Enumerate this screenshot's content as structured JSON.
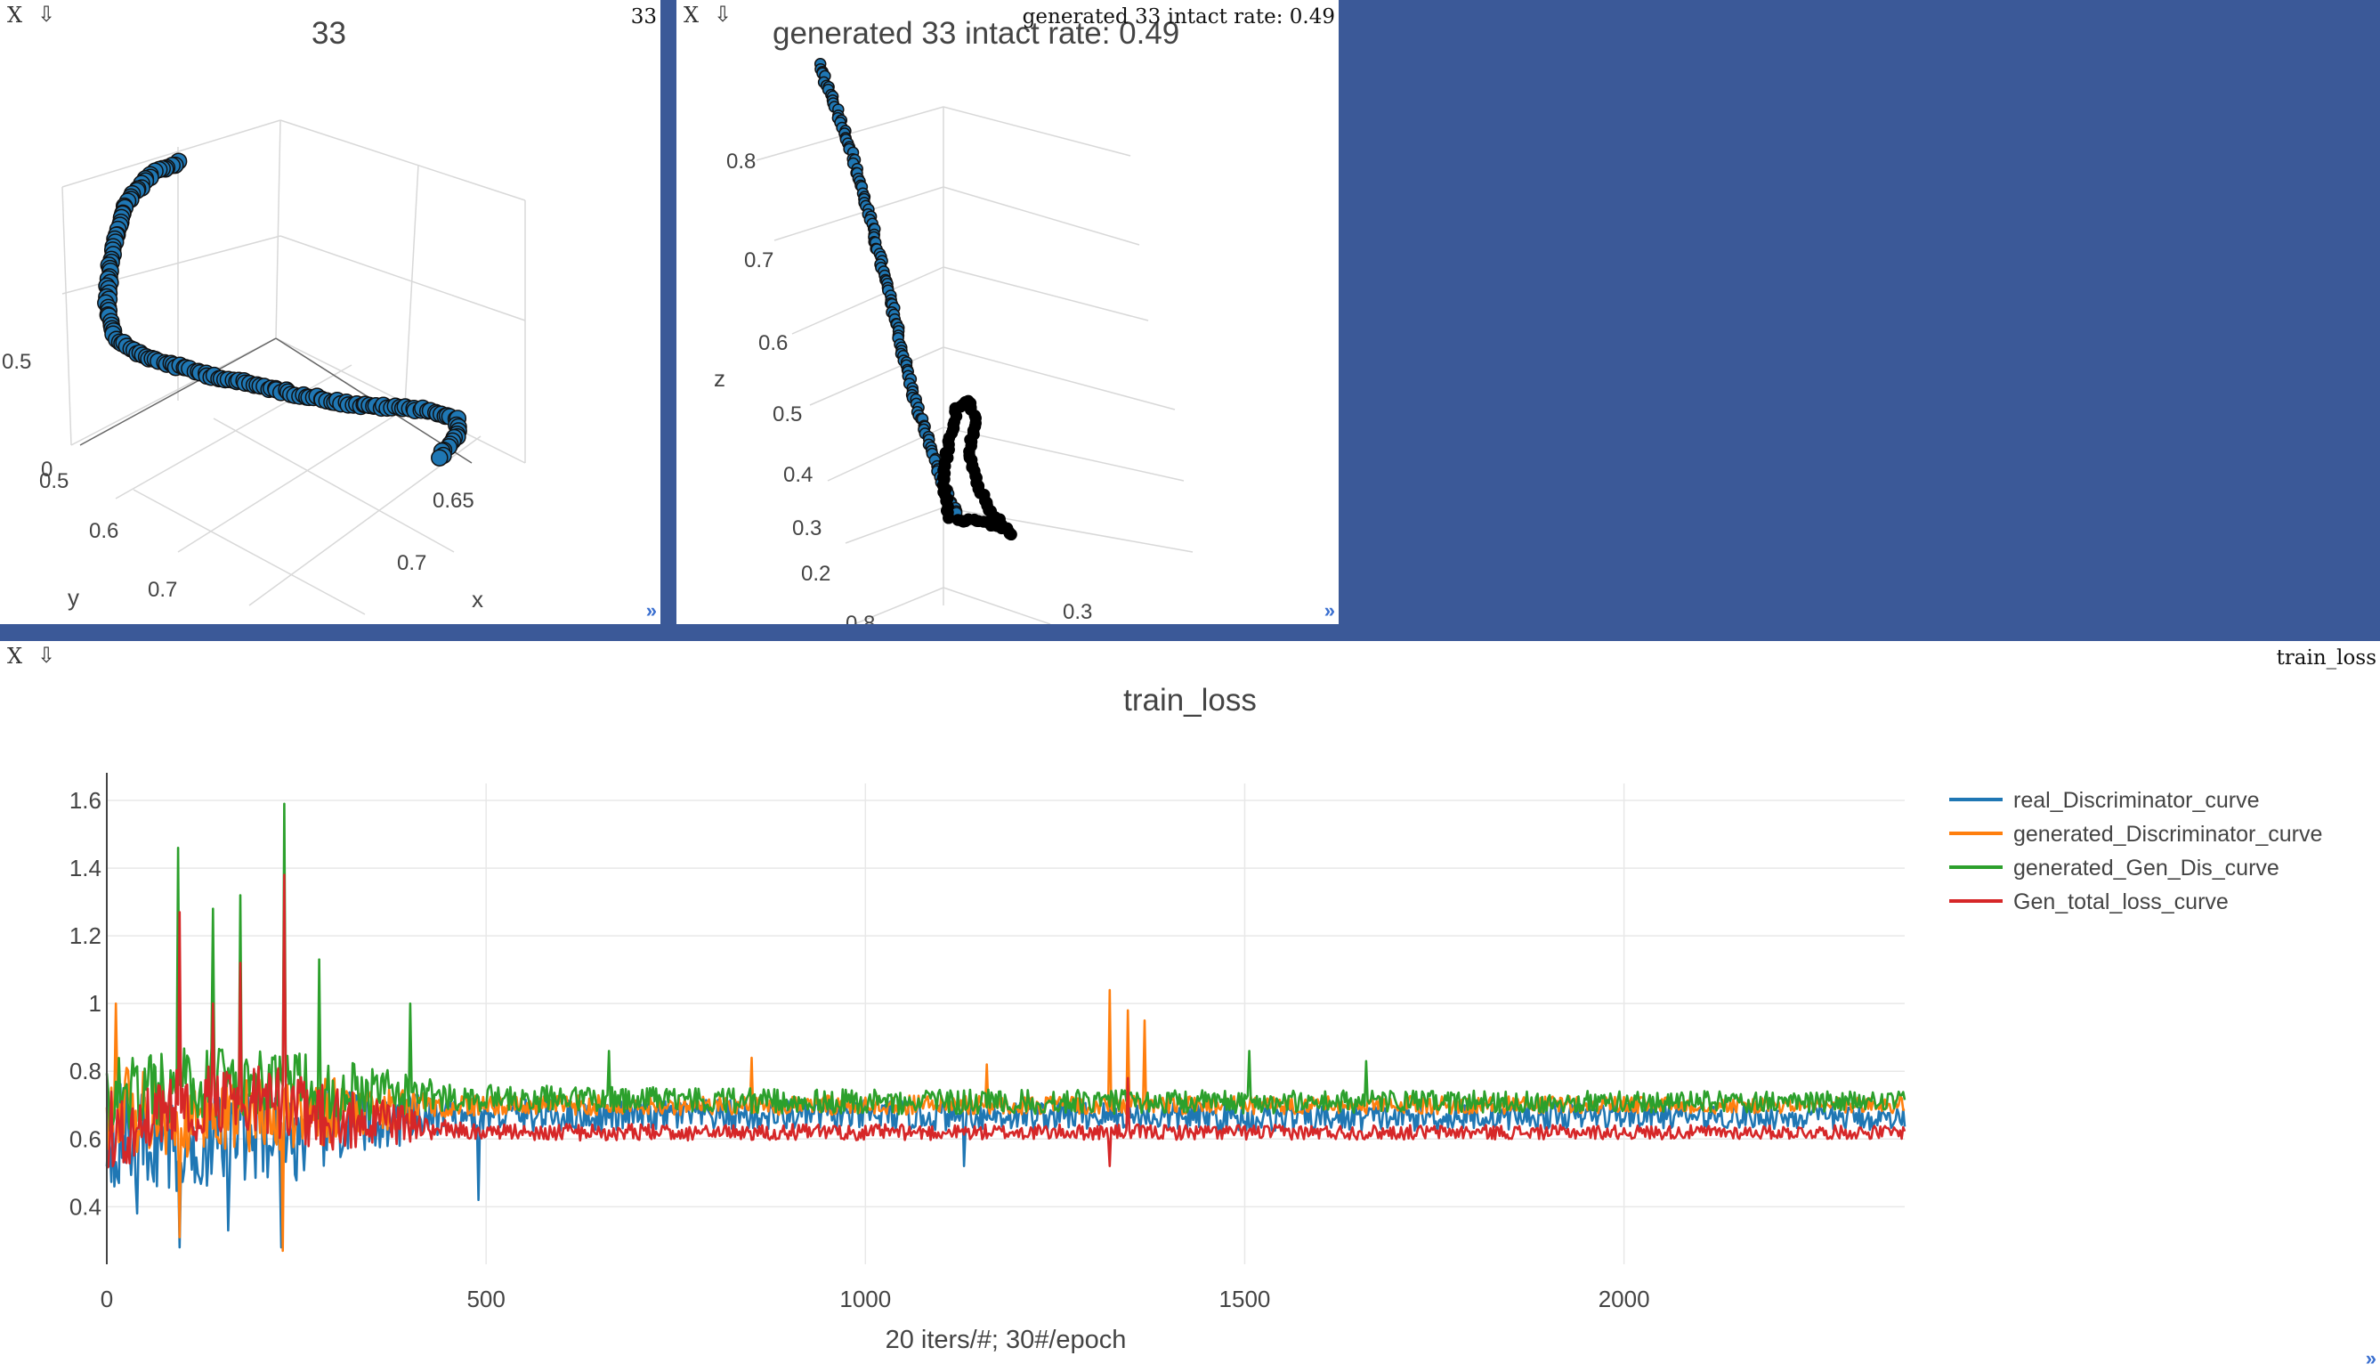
{
  "ui": {
    "close_label": "X",
    "save_label": "⇩",
    "resize_label": "»"
  },
  "panes": [
    {
      "id": "pane1",
      "window_title": "33",
      "plot_title": "33",
      "axis_labels": {
        "x": "x",
        "y": "y"
      },
      "x_ticks": [
        "0.65",
        "0.7"
      ],
      "y_ticks": [
        "0.5",
        "0.6",
        "0.7"
      ],
      "z_ticks": [
        "0.5",
        "0"
      ]
    },
    {
      "id": "pane2",
      "window_title": "generated 33 intact rate: 0.49",
      "plot_title": "generated 33  intact rate: 0.49",
      "axis_labels": {
        "z": "z"
      },
      "z_ticks": [
        "0.8",
        "0.7",
        "0.6",
        "0.5",
        "0.4",
        "0.3",
        "0.2"
      ],
      "x_ticks": [
        "0.3"
      ],
      "y_ticks": [
        "0.8"
      ]
    },
    {
      "id": "pane3",
      "window_title": "train_loss"
    }
  ],
  "chart_data": {
    "type": "line",
    "title": "train_loss",
    "xlabel": "20 iters/#; 30#/epoch",
    "ylabel": "",
    "xlim": [
      0,
      2370
    ],
    "ylim": [
      0.23,
      1.65
    ],
    "x_ticks": [
      0,
      500,
      1000,
      1500,
      2000
    ],
    "y_ticks": [
      0.4,
      0.6,
      0.8,
      1,
      1.2,
      1.4,
      1.6
    ],
    "y_tick_labels": [
      "0.4",
      "0.6",
      "0.8",
      "1",
      "1.2",
      "1.4",
      "1.6"
    ],
    "grid": true,
    "legend_position": "top-right",
    "series": [
      {
        "name": "real_Discriminator_curve",
        "color": "#1f77b4",
        "anchors": [
          [
            0,
            0.62
          ],
          [
            50,
            0.6
          ],
          [
            100,
            0.58
          ],
          [
            150,
            0.6
          ],
          [
            200,
            0.62
          ],
          [
            250,
            0.6
          ],
          [
            300,
            0.64
          ],
          [
            400,
            0.66
          ],
          [
            500,
            0.67
          ],
          [
            700,
            0.67
          ],
          [
            1000,
            0.67
          ],
          [
            1300,
            0.67
          ],
          [
            1500,
            0.66
          ],
          [
            2000,
            0.67
          ],
          [
            2370,
            0.66
          ]
        ],
        "noise": [
          [
            0,
            0.16
          ],
          [
            300,
            0.12
          ],
          [
            450,
            0.05
          ],
          [
            2370,
            0.035
          ]
        ],
        "peaks": [
          [
            95,
            0.28
          ],
          [
            230,
            0.28
          ],
          [
            40,
            0.38
          ],
          [
            160,
            0.33
          ],
          [
            490,
            0.42
          ],
          [
            1130,
            0.52
          ]
        ]
      },
      {
        "name": "generated_Discriminator_curve",
        "color": "#ff7f0e",
        "anchors": [
          [
            0,
            0.7
          ],
          [
            100,
            0.66
          ],
          [
            200,
            0.67
          ],
          [
            300,
            0.68
          ],
          [
            500,
            0.7
          ],
          [
            1000,
            0.7
          ],
          [
            1500,
            0.7
          ],
          [
            2000,
            0.7
          ],
          [
            2370,
            0.7
          ]
        ],
        "noise": [
          [
            0,
            0.13
          ],
          [
            300,
            0.1
          ],
          [
            450,
            0.03
          ],
          [
            2370,
            0.025
          ]
        ],
        "peaks": [
          [
            1322,
            1.04
          ],
          [
            1345,
            0.98
          ],
          [
            1368,
            0.95
          ],
          [
            12,
            1.0
          ],
          [
            95,
            0.31
          ],
          [
            232,
            0.27
          ],
          [
            850,
            0.84
          ],
          [
            1160,
            0.82
          ]
        ]
      },
      {
        "name": "generated_Gen_Dis_curve",
        "color": "#2ca02c",
        "anchors": [
          [
            0,
            0.73
          ],
          [
            100,
            0.76
          ],
          [
            200,
            0.76
          ],
          [
            300,
            0.74
          ],
          [
            500,
            0.72
          ],
          [
            1000,
            0.71
          ],
          [
            1500,
            0.71
          ],
          [
            2000,
            0.71
          ],
          [
            2370,
            0.71
          ]
        ],
        "noise": [
          [
            0,
            0.12
          ],
          [
            300,
            0.1
          ],
          [
            450,
            0.04
          ],
          [
            2370,
            0.03
          ]
        ],
        "peaks": [
          [
            94,
            1.46
          ],
          [
            233,
            1.59
          ],
          [
            175,
            1.32
          ],
          [
            140,
            1.28
          ],
          [
            280,
            1.13
          ],
          [
            400,
            1.0
          ],
          [
            662,
            0.86
          ],
          [
            1505,
            0.86
          ],
          [
            1660,
            0.83
          ]
        ]
      },
      {
        "name": "Gen_total_loss_curve",
        "color": "#d62728",
        "anchors": [
          [
            0,
            0.62
          ],
          [
            100,
            0.7
          ],
          [
            200,
            0.72
          ],
          [
            300,
            0.66
          ],
          [
            500,
            0.62
          ],
          [
            1000,
            0.62
          ],
          [
            1500,
            0.62
          ],
          [
            2000,
            0.62
          ],
          [
            2370,
            0.62
          ]
        ],
        "noise": [
          [
            0,
            0.12
          ],
          [
            300,
            0.1
          ],
          [
            450,
            0.025
          ],
          [
            2370,
            0.02
          ]
        ],
        "peaks": [
          [
            95,
            1.27
          ],
          [
            234,
            1.38
          ],
          [
            175,
            1.12
          ],
          [
            140,
            1.0
          ],
          [
            1322,
            0.52
          ],
          [
            1345,
            0.78
          ]
        ]
      }
    ]
  }
}
